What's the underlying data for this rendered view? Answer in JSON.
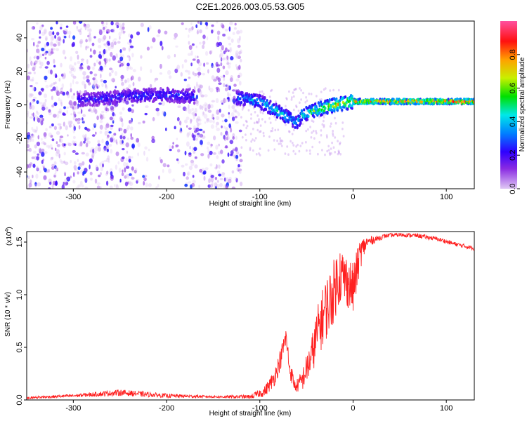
{
  "chart_data": [
    {
      "type": "heatmap",
      "title": "C2E1.2026.003.05.53.G05",
      "xlabel": "Height of straight line (km)",
      "ylabel": "Frequency (Hz)",
      "xlim": [
        -350,
        130
      ],
      "ylim": [
        -50,
        50
      ],
      "xticks": [
        -300,
        -200,
        -100,
        0,
        100
      ],
      "xtick_labels": [
        "-300",
        "-200",
        "-100",
        "0",
        "100"
      ],
      "yticks": [
        40,
        20,
        0,
        -20,
        -40
      ],
      "ytick_labels": [
        "40",
        "20",
        "0",
        "-20",
        "-40"
      ],
      "colorbar": {
        "label": "Normalized spectral amplitude",
        "range": [
          0,
          1
        ],
        "ticks": [
          0.0,
          0.2,
          0.4,
          0.6,
          0.8
        ],
        "tick_labels": [
          "0.0",
          "0.2",
          "0.4",
          "0.6",
          "0.8"
        ],
        "colors": [
          "#e0c8f4",
          "#8a2be2",
          "#2f00ff",
          "#0080ff",
          "#00e8e8",
          "#00e000",
          "#c8f000",
          "#ffa000",
          "#ff1010",
          "#ff50a0"
        ]
      },
      "ridge": {
        "x": [
          -290,
          -250,
          -200,
          -175,
          -120,
          -100,
          -80,
          -60,
          -55,
          -40,
          -20,
          0,
          20,
          50,
          100,
          130
        ],
        "y": [
          3,
          5,
          6,
          5,
          4,
          2,
          -4,
          -11,
          -6,
          -3,
          0,
          2,
          2,
          2,
          2,
          2
        ],
        "peak_amplitude": [
          0.25,
          0.28,
          0.3,
          0.28,
          0.4,
          0.45,
          0.5,
          0.45,
          0.55,
          0.65,
          0.75,
          0.8,
          0.88,
          0.92,
          0.95,
          0.95
        ]
      },
      "noise_region_x": [
        -350,
        -120
      ]
    },
    {
      "type": "line",
      "xlabel": "Height of straight line (km)",
      "ylabel": "SNR (10 * v/v)",
      "y_multiplier": "(x10",
      "y_multiplier_exp": "4",
      "multiplier_close": ")",
      "xlim": [
        -350,
        130
      ],
      "ylim": [
        0,
        1.6
      ],
      "xticks": [
        -300,
        -200,
        -100,
        0,
        100
      ],
      "xtick_labels": [
        "-300",
        "-200",
        "-100",
        "0",
        "100"
      ],
      "yticks": [
        0.0,
        0.5,
        1.0,
        1.5
      ],
      "ytick_labels": [
        "0.0",
        "0.5",
        "1.0",
        "1.5"
      ],
      "line_color": "#ff2020",
      "series": [
        {
          "x": [
            -350,
            -300,
            -250,
            -200,
            -150,
            -110,
            -95,
            -85,
            -78,
            -72,
            -68,
            -62,
            -55,
            -45,
            -38,
            -30,
            -22,
            -15,
            -8,
            0,
            8,
            15,
            25,
            35,
            50,
            70,
            90,
            110,
            130
          ],
          "y": [
            0.02,
            0.04,
            0.07,
            0.04,
            0.03,
            0.03,
            0.08,
            0.2,
            0.38,
            0.6,
            0.3,
            0.12,
            0.18,
            0.4,
            0.65,
            0.85,
            1.0,
            1.2,
            1.15,
            1.05,
            1.4,
            1.5,
            1.53,
            1.56,
            1.57,
            1.56,
            1.53,
            1.48,
            1.44
          ],
          "noise": [
            0.01,
            0.015,
            0.03,
            0.02,
            0.01,
            0.02,
            0.05,
            0.08,
            0.1,
            0.1,
            0.1,
            0.05,
            0.1,
            0.18,
            0.25,
            0.3,
            0.3,
            0.3,
            0.25,
            0.25,
            0.15,
            0.05,
            0.03,
            0.02,
            0.02,
            0.02,
            0.02,
            0.02,
            0.02
          ]
        }
      ]
    }
  ]
}
